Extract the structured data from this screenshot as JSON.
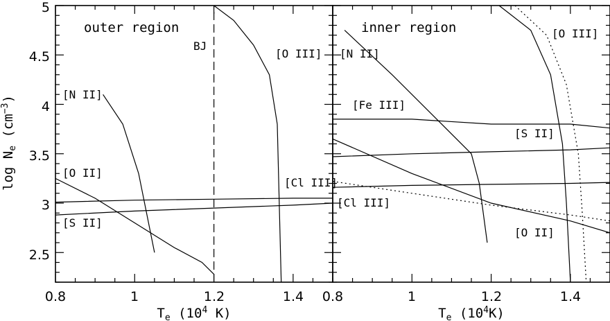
{
  "chart_data": [
    {
      "type": "line",
      "panel": "left",
      "title": "outer region",
      "xlabel": "T_e (10^4 K)",
      "ylabel": "log N_e (cm^-3)",
      "xlim": [
        0.8,
        1.5
      ],
      "ylim": [
        2.2,
        5.0
      ],
      "xticks": [
        "0.8",
        "1",
        "1.2",
        "1.4"
      ],
      "yticks": [
        "2.5",
        "3",
        "3.5",
        "4",
        "4.5",
        "5"
      ],
      "series": [
        {
          "name": "[N II]",
          "style": "solid",
          "x": [
            0.92,
            0.97,
            1.01,
            1.05
          ],
          "y": [
            4.1,
            3.8,
            3.3,
            2.5
          ]
        },
        {
          "name": "[O II]",
          "style": "solid",
          "x": [
            0.8,
            0.9,
            1.0,
            1.1,
            1.17,
            1.2
          ],
          "y": [
            3.25,
            3.05,
            2.8,
            2.55,
            2.4,
            2.28
          ]
        },
        {
          "name": "[S II]",
          "style": "solid",
          "x": [
            0.8,
            1.0,
            1.2,
            1.4,
            1.5
          ],
          "y": [
            2.88,
            2.92,
            2.95,
            2.98,
            3.0
          ]
        },
        {
          "name": "[Cl III]",
          "style": "solid",
          "x": [
            0.8,
            1.0,
            1.2,
            1.4,
            1.5
          ],
          "y": [
            3.01,
            3.03,
            3.04,
            3.05,
            3.05
          ]
        },
        {
          "name": "[O III]",
          "style": "solid",
          "x": [
            1.2,
            1.25,
            1.3,
            1.34,
            1.36,
            1.37
          ],
          "y": [
            5.0,
            4.85,
            4.6,
            4.3,
            3.8,
            2.2
          ]
        },
        {
          "name": "BJ",
          "style": "dashed",
          "x": [
            1.2,
            1.2
          ],
          "y": [
            2.2,
            5.0
          ]
        }
      ],
      "annotations": {
        "title": "outer region",
        "bj": "BJ",
        "oiii": "[O III]",
        "nii": "[N II]",
        "oii": "[O II]",
        "sii": "[S II]",
        "cliii": "[Cl III]"
      }
    },
    {
      "type": "line",
      "panel": "right",
      "title": "inner region",
      "xlabel": "T_e (10^4K)",
      "xlim": [
        0.8,
        1.5
      ],
      "ylim": [
        2.2,
        5.0
      ],
      "xticks": [
        "0.8",
        "1",
        "1.2",
        "1.4"
      ],
      "series": [
        {
          "name": "[N II]",
          "style": "solid",
          "x": [
            0.83,
            0.95,
            1.05,
            1.15,
            1.17,
            1.19
          ],
          "y": [
            4.75,
            4.3,
            3.9,
            3.5,
            3.2,
            2.6
          ]
        },
        {
          "name": "[Fe III]",
          "style": "solid",
          "x": [
            0.8,
            1.0,
            1.2,
            1.4,
            1.5
          ],
          "y": [
            3.85,
            3.85,
            3.8,
            3.8,
            3.76
          ]
        },
        {
          "name": "[S II]",
          "style": "solid",
          "x": [
            0.8,
            1.0,
            1.2,
            1.4,
            1.5
          ],
          "y": [
            3.47,
            3.5,
            3.52,
            3.54,
            3.56
          ]
        },
        {
          "name": "[Cl III]",
          "style": "solid",
          "x": [
            0.8,
            1.0,
            1.2,
            1.4,
            1.5
          ],
          "y": [
            3.16,
            3.18,
            3.19,
            3.2,
            3.21
          ]
        },
        {
          "name": "[O II]",
          "style": "solid",
          "x": [
            0.8,
            1.0,
            1.2,
            1.4,
            1.5
          ],
          "y": [
            3.65,
            3.3,
            3.0,
            2.82,
            2.7
          ]
        },
        {
          "name": "[O II]",
          "style": "dotted",
          "x": [
            0.8,
            1.0,
            1.2,
            1.4,
            1.5
          ],
          "y": [
            3.22,
            3.1,
            2.98,
            2.88,
            2.82
          ]
        },
        {
          "name": "[O III]",
          "style": "solid",
          "x": [
            1.22,
            1.3,
            1.35,
            1.38,
            1.39,
            1.4
          ],
          "y": [
            5.0,
            4.75,
            4.3,
            3.6,
            3.0,
            2.2
          ]
        },
        {
          "name": "[O III]",
          "style": "dotted",
          "x": [
            1.26,
            1.34,
            1.39,
            1.42,
            1.43,
            1.44
          ],
          "y": [
            5.0,
            4.7,
            4.2,
            3.5,
            2.9,
            2.2
          ]
        }
      ],
      "annotations": {
        "title": "inner region",
        "oiii": "[O III]",
        "nii": "[N II]",
        "feiii": "[Fe III]",
        "sii": "[S II]",
        "cliii": "[Cl III]",
        "oii": "[O II]"
      }
    }
  ],
  "axis_text": {
    "ylabel_main": "log N",
    "ylabel_sub": "e",
    "ylabel_unit": " (cm",
    "ylabel_exp": "−3",
    "ylabel_close": ")",
    "xlabel_left_main": "T",
    "xlabel_left_sub": "e",
    "xlabel_left_unit": " (10",
    "xlabel_left_exp": "4",
    "xlabel_left_close": " K)",
    "xlabel_right_main": "T",
    "xlabel_right_sub": "e",
    "xlabel_right_unit": " (10",
    "xlabel_right_exp": "4",
    "xlabel_right_close": "K)"
  }
}
